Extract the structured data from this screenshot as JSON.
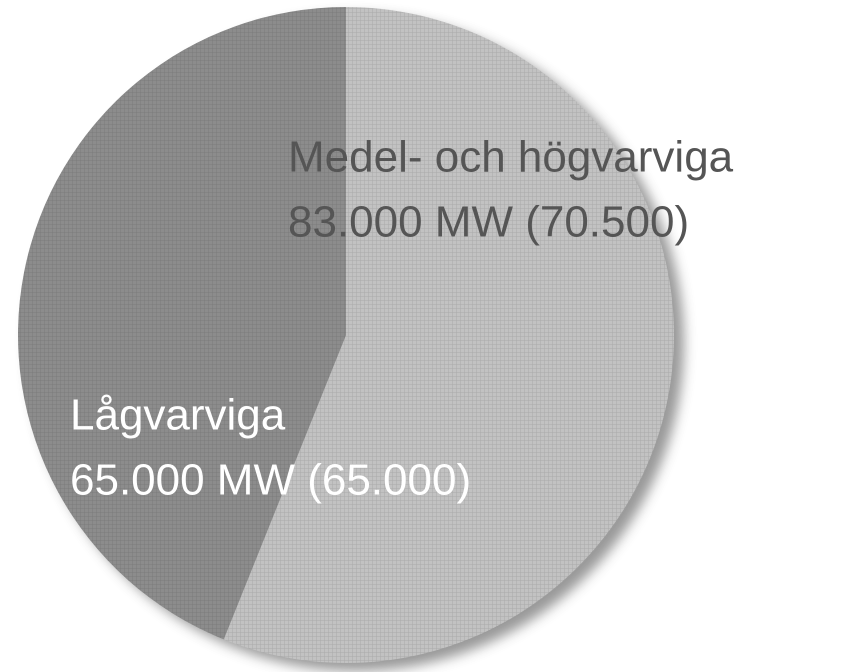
{
  "chart_data": {
    "type": "pie",
    "categories": [
      "Medel- och högvarviga",
      "Lågvarviga"
    ],
    "values": [
      83000,
      65000
    ],
    "value_labels": [
      "83.000 MW (70.500)",
      "65.000 MW (65.000)"
    ],
    "colors": [
      "#c2c2c2",
      "#8c8c8c"
    ]
  }
}
